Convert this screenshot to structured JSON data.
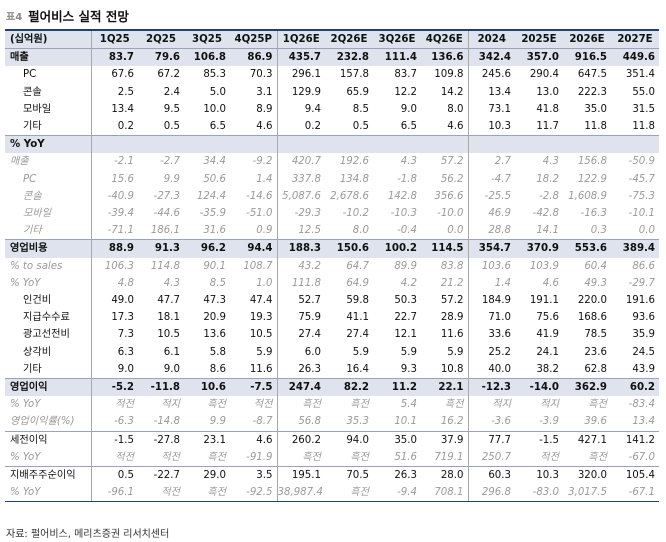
{
  "title": {
    "prefix": "표4",
    "text": "펄어비스 실적 전망"
  },
  "header": {
    "label": "(십억원)",
    "cols": [
      "1Q25",
      "2Q25",
      "3Q25",
      "4Q25P",
      "1Q26E",
      "2Q26E",
      "3Q26E",
      "4Q26E",
      "2024",
      "2025E",
      "2026E",
      "2027E"
    ]
  },
  "rows": [
    {
      "label": "매출",
      "cls": "sec",
      "v": [
        "83.7",
        "79.6",
        "106.8",
        "86.9",
        "435.7",
        "232.8",
        "111.4",
        "136.6",
        "342.4",
        "357.0",
        "916.5",
        "449.6"
      ]
    },
    {
      "label": "PC",
      "cls": "sub",
      "v": [
        "67.6",
        "67.2",
        "85.3",
        "70.3",
        "296.1",
        "157.8",
        "83.7",
        "109.8",
        "245.6",
        "290.4",
        "647.5",
        "351.4"
      ]
    },
    {
      "label": "콘솔",
      "cls": "sub",
      "v": [
        "2.5",
        "2.4",
        "5.0",
        "3.1",
        "129.9",
        "65.9",
        "12.2",
        "14.2",
        "13.4",
        "13.0",
        "222.3",
        "55.0"
      ]
    },
    {
      "label": "모바일",
      "cls": "sub",
      "v": [
        "13.4",
        "9.5",
        "10.0",
        "8.9",
        "9.4",
        "8.5",
        "9.0",
        "8.0",
        "73.1",
        "41.8",
        "35.0",
        "31.5"
      ]
    },
    {
      "label": "기타",
      "cls": "sub",
      "v": [
        "0.2",
        "0.5",
        "6.5",
        "4.6",
        "0.2",
        "0.5",
        "6.5",
        "4.6",
        "10.3",
        "11.7",
        "11.8",
        "11.8"
      ]
    },
    {
      "label": "% YoY",
      "cls": "sec bt",
      "v": [
        "",
        "",
        "",
        "",
        "",
        "",
        "",
        "",
        "",
        "",
        "",
        ""
      ]
    },
    {
      "label": "매출",
      "cls": "pct",
      "v": [
        "-2.1",
        "-2.7",
        "34.4",
        "-9.2",
        "420.7",
        "192.6",
        "4.3",
        "57.2",
        "2.7",
        "4.3",
        "156.8",
        "-50.9"
      ]
    },
    {
      "label": "PC",
      "cls": "pct sub",
      "v": [
        "15.6",
        "9.9",
        "50.6",
        "1.4",
        "337.8",
        "134.8",
        "-1.8",
        "56.2",
        "-4.7",
        "18.2",
        "122.9",
        "-45.7"
      ]
    },
    {
      "label": "콘솔",
      "cls": "pct sub",
      "v": [
        "-40.9",
        "-27.3",
        "124.4",
        "-14.6",
        "5,087.6",
        "2,678.6",
        "142.8",
        "356.6",
        "-25.5",
        "-2.8",
        "1,608.9",
        "-75.3"
      ]
    },
    {
      "label": "모바일",
      "cls": "pct sub",
      "v": [
        "-39.4",
        "-44.6",
        "-35.9",
        "-51.0",
        "-29.3",
        "-10.2",
        "-10.3",
        "-10.0",
        "46.9",
        "-42.8",
        "-16.3",
        "-10.1"
      ]
    },
    {
      "label": "기타",
      "cls": "pct sub",
      "v": [
        "-71.1",
        "186.1",
        "31.6",
        "0.9",
        "12.5",
        "8.0",
        "-0.4",
        "0.0",
        "28.8",
        "14.1",
        "0.3",
        "0.0"
      ]
    },
    {
      "label": "영업비용",
      "cls": "sec bt",
      "v": [
        "88.9",
        "91.3",
        "96.2",
        "94.4",
        "188.3",
        "150.6",
        "100.2",
        "114.5",
        "354.7",
        "370.9",
        "553.6",
        "389.4"
      ]
    },
    {
      "label": "% to sales",
      "cls": "pct",
      "v": [
        "106.3",
        "114.8",
        "90.1",
        "108.7",
        "43.2",
        "64.7",
        "89.9",
        "83.8",
        "103.6",
        "103.9",
        "60.4",
        "86.6"
      ]
    },
    {
      "label": "% YoY",
      "cls": "pct",
      "v": [
        "4.8",
        "4.3",
        "8.5",
        "1.0",
        "111.8",
        "64.9",
        "4.2",
        "21.2",
        "1.4",
        "4.6",
        "49.3",
        "-29.7"
      ]
    },
    {
      "label": "인건비",
      "cls": "sub",
      "v": [
        "49.0",
        "47.7",
        "47.3",
        "47.4",
        "52.7",
        "59.8",
        "50.3",
        "57.2",
        "184.9",
        "191.1",
        "220.0",
        "191.6"
      ]
    },
    {
      "label": "지급수수료",
      "cls": "sub",
      "v": [
        "17.3",
        "18.1",
        "20.9",
        "19.3",
        "75.9",
        "41.1",
        "22.7",
        "28.9",
        "71.0",
        "75.6",
        "168.6",
        "93.6"
      ]
    },
    {
      "label": "광고선전비",
      "cls": "sub",
      "v": [
        "7.3",
        "10.5",
        "13.6",
        "10.5",
        "27.4",
        "27.4",
        "12.1",
        "11.6",
        "33.6",
        "41.9",
        "78.5",
        "35.9"
      ]
    },
    {
      "label": "상각비",
      "cls": "sub",
      "v": [
        "6.3",
        "6.1",
        "5.8",
        "5.9",
        "6.0",
        "5.9",
        "5.9",
        "5.9",
        "25.2",
        "24.1",
        "23.6",
        "24.5"
      ]
    },
    {
      "label": "기타",
      "cls": "sub",
      "v": [
        "9.0",
        "9.0",
        "8.6",
        "11.6",
        "26.3",
        "16.4",
        "9.3",
        "10.8",
        "40.0",
        "38.2",
        "62.8",
        "43.9"
      ]
    },
    {
      "label": "영업이익",
      "cls": "sec bt",
      "v": [
        "-5.2",
        "-11.8",
        "10.6",
        "-7.5",
        "247.4",
        "82.2",
        "11.2",
        "22.1",
        "-12.3",
        "-14.0",
        "362.9",
        "60.2"
      ]
    },
    {
      "label": "% YoY",
      "cls": "pct",
      "v": [
        "적전",
        "적지",
        "흑전",
        "적전",
        "흑전",
        "흑전",
        "5.4",
        "흑전",
        "적지",
        "적지",
        "흑전",
        "-83.4"
      ]
    },
    {
      "label": "영업이익률(%)",
      "cls": "pct",
      "v": [
        "-6.3",
        "-14.8",
        "9.9",
        "-8.7",
        "56.8",
        "35.3",
        "10.1",
        "16.2",
        "-3.6",
        "-3.9",
        "39.6",
        "13.4"
      ]
    },
    {
      "label": "세전이익",
      "cls": "bt",
      "v": [
        "-1.5",
        "-27.8",
        "23.1",
        "4.6",
        "260.2",
        "94.0",
        "35.0",
        "37.9",
        "77.7",
        "-1.5",
        "427.1",
        "141.2"
      ]
    },
    {
      "label": "% YoY",
      "cls": "pct",
      "v": [
        "적전",
        "적전",
        "흑전",
        "-91.9",
        "흑전",
        "흑전",
        "51.6",
        "719.1",
        "250.7",
        "적전",
        "흑전",
        "-67.0"
      ]
    },
    {
      "label": "지배주주순이익",
      "cls": "bt",
      "v": [
        "0.5",
        "-22.7",
        "29.0",
        "3.5",
        "195.1",
        "70.5",
        "26.3",
        "28.0",
        "60.3",
        "10.3",
        "320.0",
        "105.4"
      ]
    },
    {
      "label": "% YoY",
      "cls": "pct last",
      "v": [
        "-96.1",
        "적전",
        "흑전",
        "-92.5",
        "38,987.4",
        "흑전",
        "-9.4",
        "708.1",
        "296.8",
        "-83.0",
        "3,017.5",
        "-67.1"
      ]
    }
  ],
  "source": "자료: 펄어비스, 메리츠증권 리서치센터",
  "colors": {
    "accent": "#1e3f79",
    "header_bg": "#dfe3ee",
    "pct_text": "#9a9a9a"
  }
}
